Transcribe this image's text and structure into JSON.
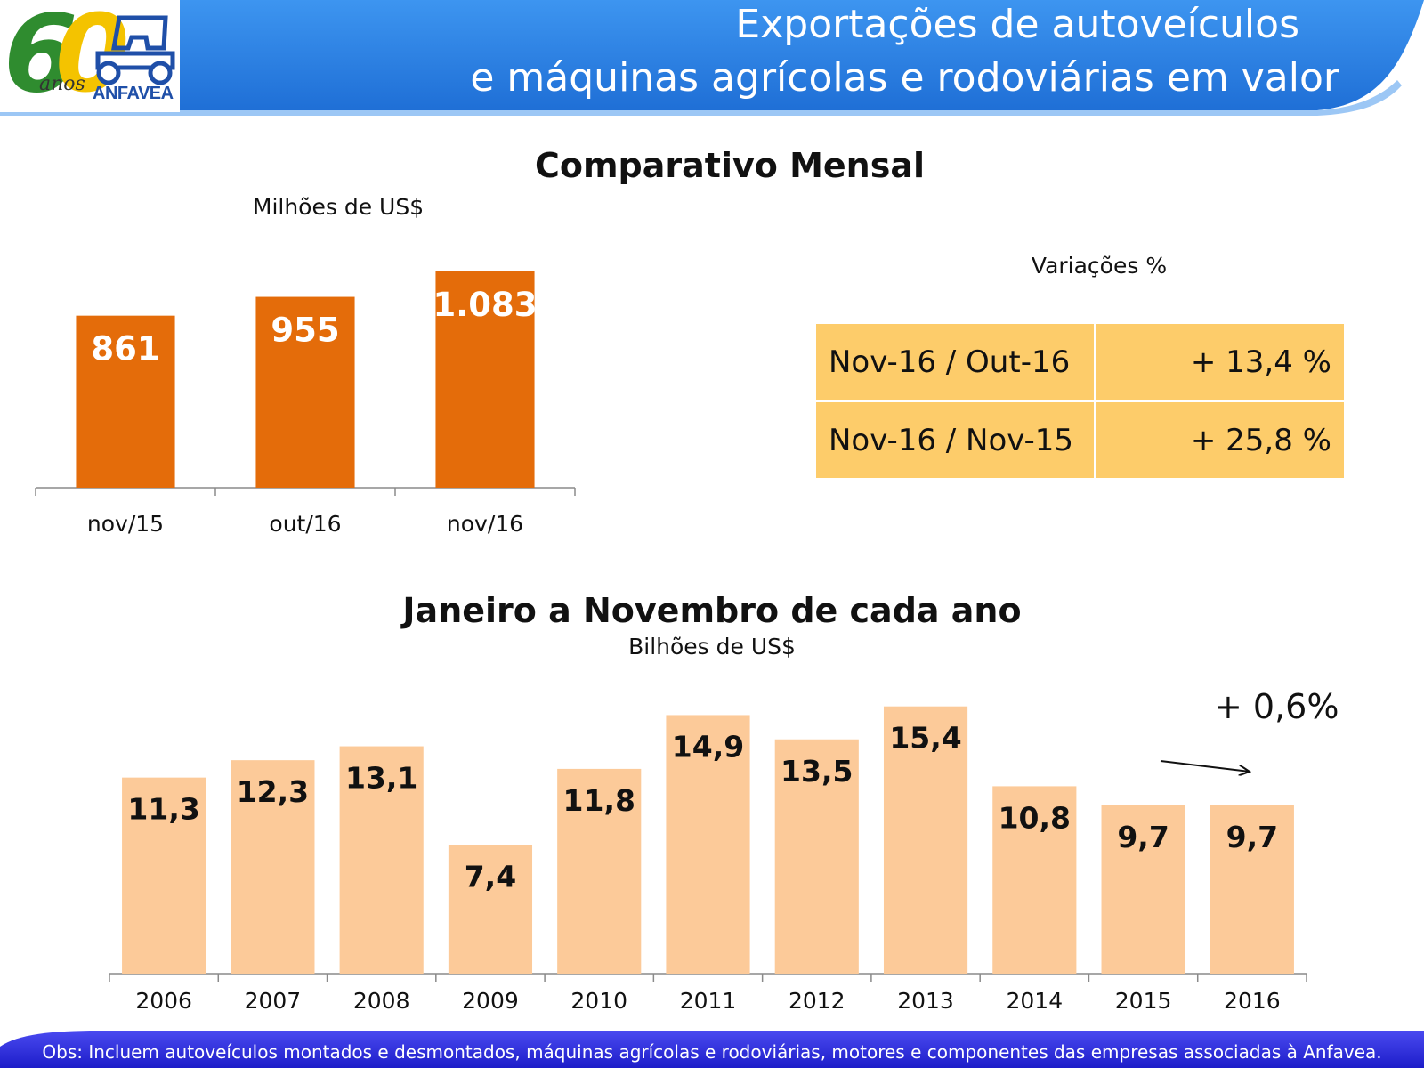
{
  "header": {
    "title_line1": "Exportações de autoveículos",
    "title_line2": "e máquinas agrícolas e rodoviárias em valor",
    "logo_text": "ANFAVEA",
    "logo_years": "60",
    "logo_anos": "anos"
  },
  "monthly": {
    "section_title": "Comparativo Mensal",
    "unit": "Milhões de US$"
  },
  "variations": {
    "title": "Variações %",
    "rows": [
      {
        "period": "Nov-16 / Out-16",
        "value": "+ 13,4 %"
      },
      {
        "period": "Nov-16 / Nov-15",
        "value": "+ 25,8 %"
      }
    ]
  },
  "yearly": {
    "section_title": "Janeiro a Novembro de cada ano",
    "unit": "Bilhões de US$",
    "growth_annotation": "+ 0,6%"
  },
  "footer": {
    "note": "Obs: Incluem autoveículos montados e desmontados, máquinas agrícolas e rodoviárias, motores e componentes das empresas associadas à Anfavea."
  },
  "colors": {
    "header_blue": "#2d84e8",
    "monthly_bar": "#e46c0a",
    "yearly_bar": "#fcca99",
    "table_fill": "#fdcc6a",
    "footer_blue": "#2525d4"
  },
  "chart_data": [
    {
      "type": "bar",
      "title": "Comparativo Mensal",
      "ylabel": "Milhões de US$",
      "categories": [
        "nov/15",
        "out/16",
        "nov/16"
      ],
      "values": [
        861,
        955,
        1083
      ],
      "value_labels": [
        "861",
        "955",
        "1.083"
      ],
      "ylim": [
        0,
        1100
      ],
      "grid": false,
      "legend": "none"
    },
    {
      "type": "bar",
      "title": "Janeiro a Novembro de cada ano",
      "ylabel": "Bilhões de US$",
      "categories": [
        "2006",
        "2007",
        "2008",
        "2009",
        "2010",
        "2011",
        "2012",
        "2013",
        "2014",
        "2015",
        "2016"
      ],
      "values": [
        11.3,
        12.3,
        13.1,
        7.4,
        11.8,
        14.9,
        13.5,
        15.4,
        10.8,
        9.7,
        9.7
      ],
      "value_labels": [
        "11,3",
        "12,3",
        "13,1",
        "7,4",
        "11,8",
        "14,9",
        "13,5",
        "15,4",
        "10,8",
        "9,7",
        "9,7"
      ],
      "ylim": [
        0,
        16
      ],
      "grid": false,
      "legend": "none"
    }
  ]
}
